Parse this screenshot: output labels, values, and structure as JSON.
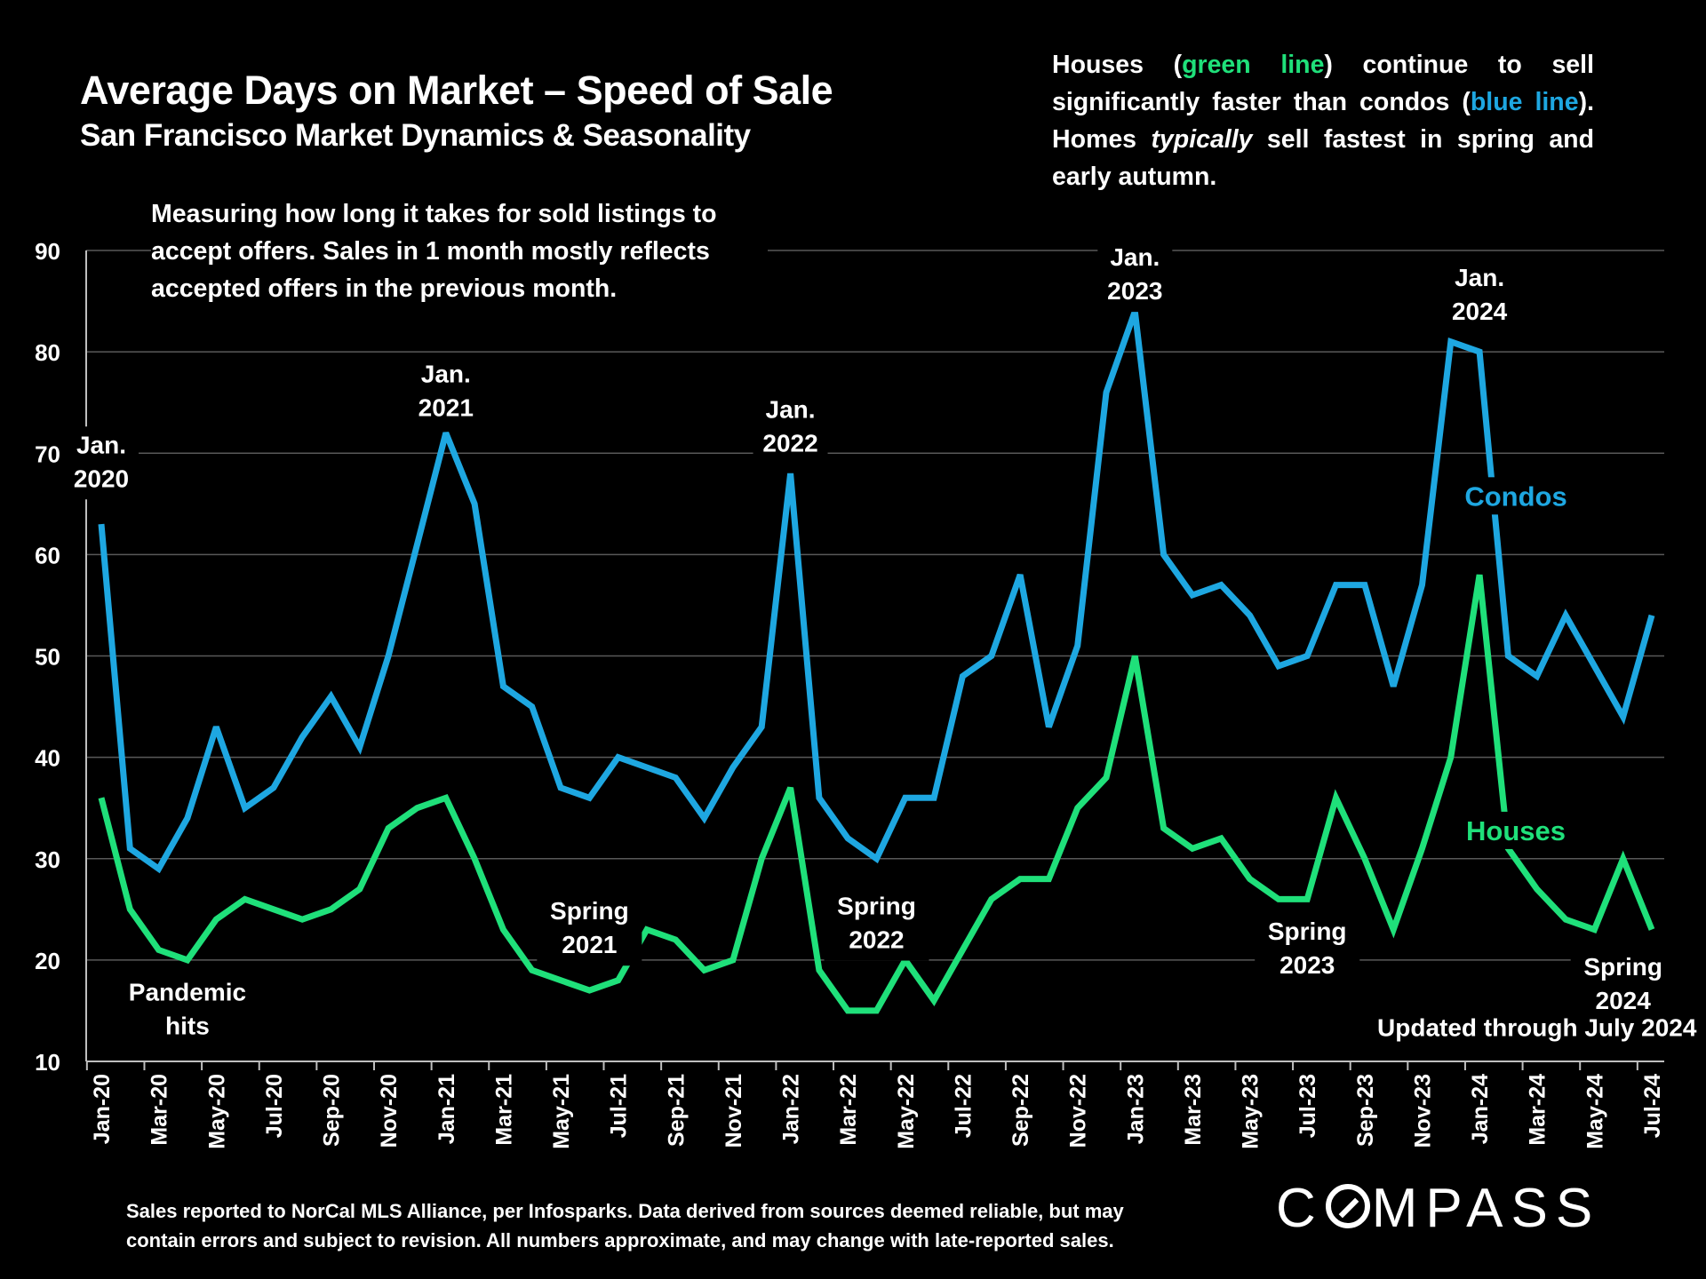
{
  "header": {
    "title": "Average Days on Market – Speed of Sale",
    "subtitle": "San Francisco Market Dynamics & Seasonality"
  },
  "summary": {
    "p1": "Houses (",
    "green_text": "green line",
    "p2": ") continue to sell significantly faster than condos (",
    "blue_text": "blue line",
    "p3": "). Homes ",
    "italic_text": "typically",
    "p4": " sell fastest in spring and early autumn."
  },
  "note": "Measuring how long it takes for sold listings to accept offers. Sales in 1 month mostly reflects accepted offers in the previous month.",
  "footer": {
    "line1": "Sales reported to NorCal MLS Alliance, per Infosparks. Data derived from sources deemed reliable, but may",
    "line2": "contain errors and subject to revision. All numbers approximate, and may change with late-reported sales."
  },
  "logo": {
    "pre": "C",
    "post": "MPASS"
  },
  "colors": {
    "condos": "#1ea7e1",
    "houses": "#1fe07a",
    "grid": "#595959",
    "background": "#000000"
  },
  "chart_data": {
    "type": "line",
    "title": "Average Days on Market – Speed of Sale",
    "subtitle": "San Francisco Market Dynamics & Seasonality",
    "xlabel": "",
    "ylabel": "",
    "ylim": [
      10,
      90
    ],
    "yticks": [
      10,
      20,
      30,
      40,
      50,
      60,
      70,
      80,
      90
    ],
    "grid": true,
    "x": [
      "Jan-20",
      "Feb-20",
      "Mar-20",
      "Apr-20",
      "May-20",
      "Jun-20",
      "Jul-20",
      "Aug-20",
      "Sep-20",
      "Oct-20",
      "Nov-20",
      "Dec-20",
      "Jan-21",
      "Feb-21",
      "Mar-21",
      "Apr-21",
      "May-21",
      "Jun-21",
      "Jul-21",
      "Aug-21",
      "Sep-21",
      "Oct-21",
      "Nov-21",
      "Dec-21",
      "Jan-22",
      "Feb-22",
      "Mar-22",
      "Apr-22",
      "May-22",
      "Jun-22",
      "Jul-22",
      "Aug-22",
      "Sep-22",
      "Oct-22",
      "Nov-22",
      "Dec-22",
      "Jan-23",
      "Feb-23",
      "Mar-23",
      "Apr-23",
      "May-23",
      "Jun-23",
      "Jul-23",
      "Aug-23",
      "Sep-23",
      "Oct-23",
      "Nov-23",
      "Dec-23",
      "Jan-24",
      "Feb-24",
      "Mar-24",
      "Apr-24",
      "May-24",
      "Jun-24",
      "Jul-24"
    ],
    "xtick_labels": [
      "Jan-20",
      "Mar-20",
      "May-20",
      "Jul-20",
      "Sep-20",
      "Nov-20",
      "Jan-21",
      "Mar-21",
      "May-21",
      "Jul-21",
      "Sep-21",
      "Nov-21",
      "Jan-22",
      "Mar-22",
      "May-22",
      "Jul-22",
      "Sep-22",
      "Nov-22",
      "Jan-23",
      "Mar-23",
      "May-23",
      "Jul-23",
      "Sep-23",
      "Nov-23",
      "Jan-24",
      "Mar-24",
      "May-24",
      "Jul-24"
    ],
    "series": [
      {
        "name": "Condos",
        "color": "#1ea7e1",
        "values": [
          63,
          31,
          29,
          34,
          43,
          35,
          37,
          42,
          46,
          41,
          50,
          61,
          72,
          65,
          47,
          45,
          37,
          36,
          40,
          39,
          38,
          34,
          39,
          43,
          68,
          36,
          32,
          30,
          36,
          36,
          48,
          50,
          58,
          43,
          51,
          76,
          84,
          60,
          56,
          57,
          54,
          49,
          50,
          57,
          57,
          47,
          57,
          81,
          80,
          50,
          48,
          54,
          49,
          44,
          54
        ]
      },
      {
        "name": "Houses",
        "color": "#1fe07a",
        "values": [
          36,
          25,
          21,
          20,
          24,
          26,
          25,
          24,
          25,
          27,
          33,
          35,
          36,
          30,
          23,
          19,
          18,
          17,
          18,
          23,
          22,
          19,
          20,
          30,
          37,
          19,
          15,
          15,
          20,
          16,
          21,
          26,
          28,
          28,
          35,
          38,
          50,
          33,
          31,
          32,
          28,
          26,
          26,
          36,
          30,
          23,
          31,
          40,
          58,
          31,
          27,
          24,
          23,
          30,
          23
        ]
      }
    ],
    "annotations": [
      {
        "text": "Jan.\n2020",
        "x": "Jan-20",
        "y": 70
      },
      {
        "text": "Pandemic\nhits",
        "x": "Apr-20",
        "y": 16
      },
      {
        "text": "Jan.\n2021",
        "x": "Jan-21",
        "y": 77
      },
      {
        "text": "Spring\n2021",
        "x": "Jun-21",
        "y": 24
      },
      {
        "text": "Jan.\n2022",
        "x": "Jan-22",
        "y": 73.5
      },
      {
        "text": "Spring\n2022",
        "x": "Apr-22",
        "y": 24.5
      },
      {
        "text": "Jan.\n2023",
        "x": "Jan-23",
        "y": 88.5
      },
      {
        "text": "Spring\n2023",
        "x": "Jul-23",
        "y": 22
      },
      {
        "text": "Jan.\n2024",
        "x": "Jan-24",
        "y": 86.5
      },
      {
        "text": "Spring\n2024",
        "x": "Jun-24",
        "y": 18.5
      },
      {
        "text": "Updated through July 2024",
        "x": "Mar-24",
        "y": 12.5
      }
    ],
    "legend": [
      {
        "text": "Condos",
        "color": "#1ea7e1",
        "placement": "right"
      },
      {
        "text": "Houses",
        "color": "#1fe07a",
        "placement": "right"
      }
    ]
  }
}
